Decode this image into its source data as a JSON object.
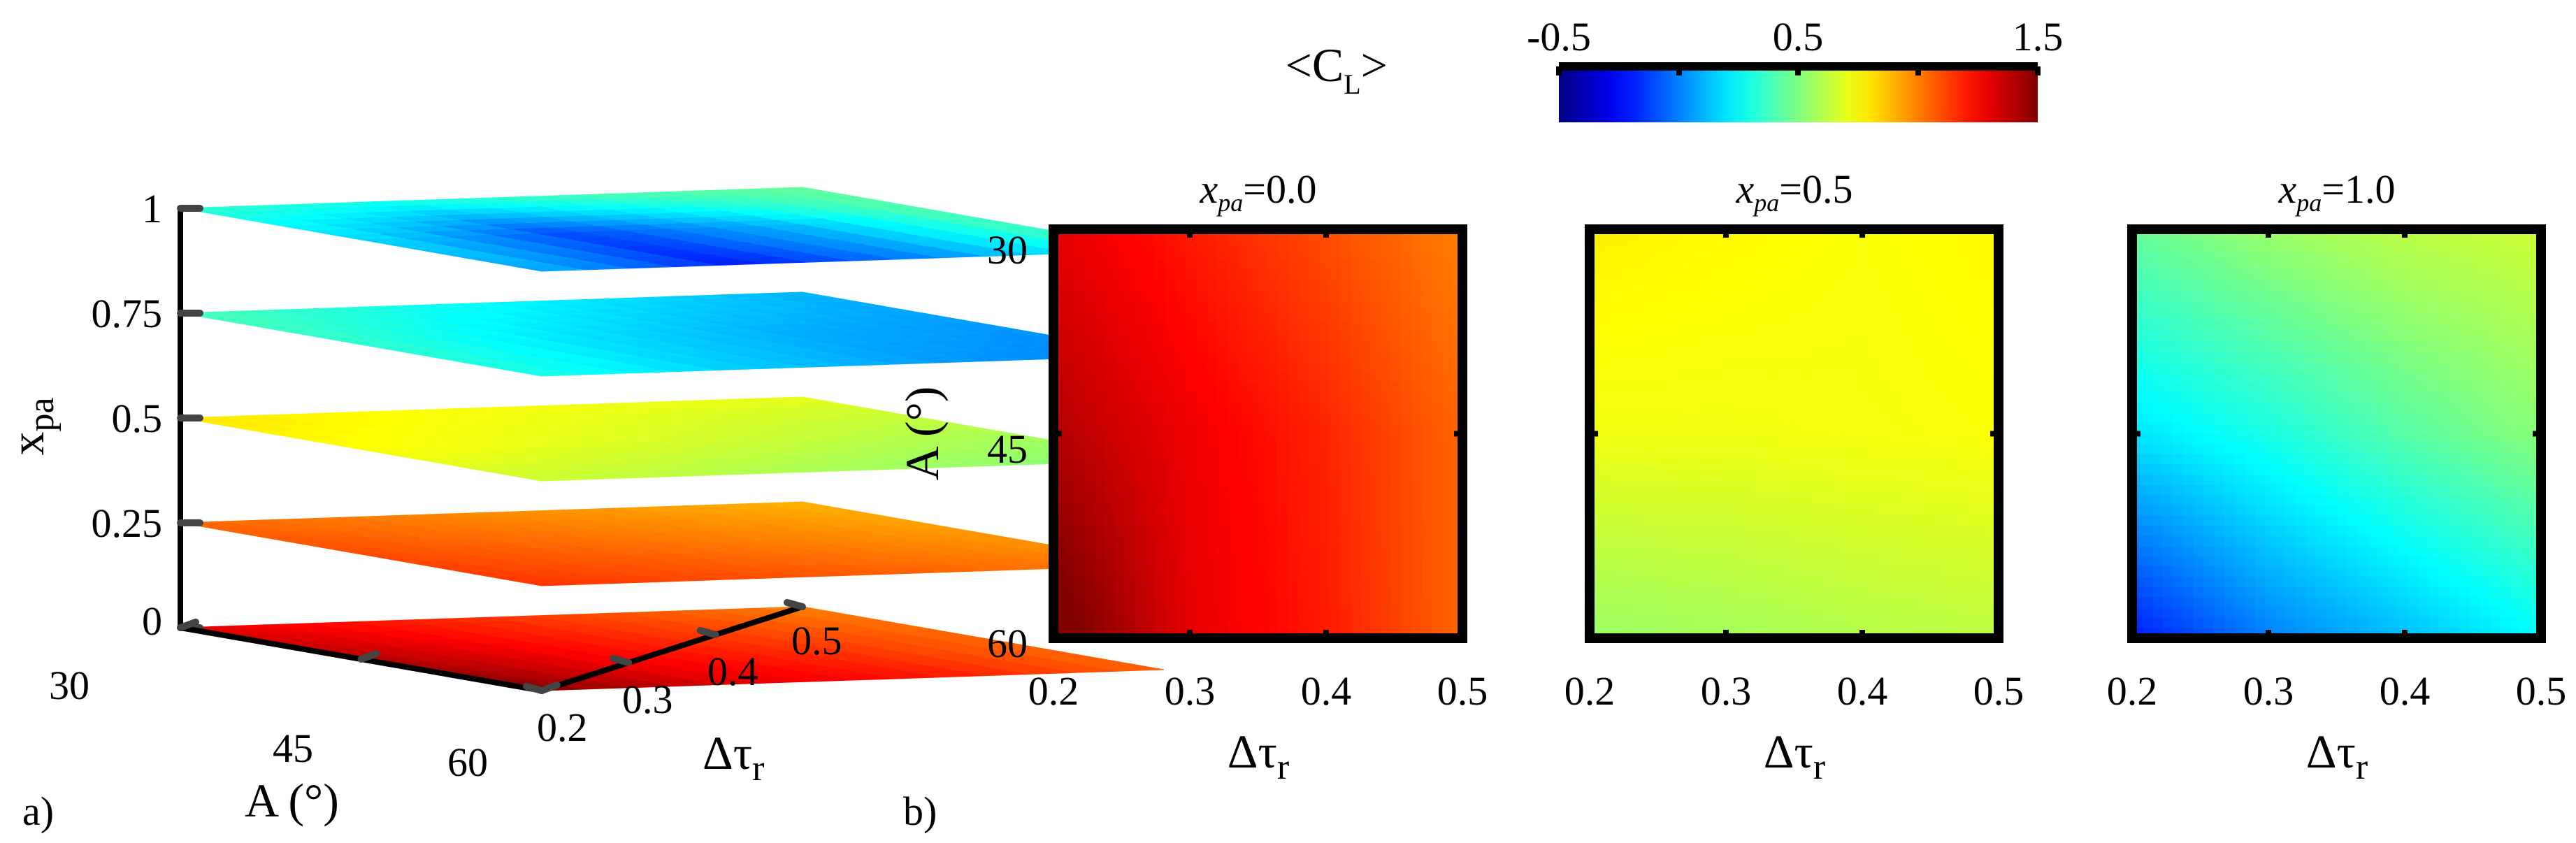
{
  "figure": {
    "panel_labels": [
      "a)",
      "b)"
    ]
  },
  "colorbar": {
    "label": "<C",
    "label_sub": "L",
    "label_close": ">",
    "min": -0.5,
    "max": 1.5,
    "ticks": [
      "-0.5",
      "0.5",
      "1.5"
    ],
    "colormap": "jet"
  },
  "chart_data": [
    {
      "type": "contour3d",
      "panel": "a)",
      "zlabel": "x",
      "zlabel_sub": "pa",
      "xlabel": "A (°)",
      "ylabel": "Δτ",
      "ylabel_sub": "r",
      "A_ticks": [
        "30",
        "45",
        "60"
      ],
      "dtau_ticks": [
        "0.2",
        "0.3",
        "0.4",
        "0.5"
      ],
      "z_ticks": [
        "0",
        "0.25",
        "0.5",
        "0.75",
        "1"
      ],
      "A": [
        30,
        45,
        60
      ],
      "dtau": [
        0.2,
        0.3,
        0.4,
        0.5
      ],
      "slices": [
        {
          "x_pa": 0.0,
          "CL": [
            [
              1.3,
              1.2,
              1.1,
              1.0
            ],
            [
              1.4,
              1.25,
              1.15,
              1.05
            ],
            [
              1.5,
              1.3,
              1.2,
              1.05
            ]
          ]
        },
        {
          "x_pa": 0.25,
          "CL": [
            [
              1.05,
              1.0,
              0.95,
              0.9
            ],
            [
              1.1,
              1.05,
              1.0,
              0.95
            ],
            [
              1.15,
              1.1,
              1.05,
              1.0
            ]
          ]
        },
        {
          "x_pa": 0.5,
          "CL": [
            [
              0.8,
              0.75,
              0.72,
              0.7
            ],
            [
              0.75,
              0.7,
              0.65,
              0.6
            ],
            [
              0.65,
              0.6,
              0.55,
              0.5
            ]
          ]
        },
        {
          "x_pa": 0.75,
          "CL": [
            [
              0.4,
              0.3,
              0.2,
              0.1
            ],
            [
              0.35,
              0.2,
              0.1,
              0.05
            ],
            [
              0.3,
              0.15,
              0.05,
              0.0
            ]
          ]
        },
        {
          "x_pa": 1.0,
          "CL": [
            [
              0.35,
              0.3,
              0.4,
              0.45
            ],
            [
              0.2,
              -0.1,
              0.1,
              0.4
            ],
            [
              0.1,
              -0.2,
              0.05,
              0.35
            ]
          ]
        }
      ]
    },
    {
      "type": "heatmap",
      "panel": "b)",
      "title": "x",
      "title_sub": "pa",
      "title_value": "=0.0",
      "xlabel": "Δτ",
      "xlabel_sub": "r",
      "ylabel": "A (°)",
      "x": [
        0.2,
        0.3,
        0.4,
        0.5
      ],
      "y": [
        30,
        45,
        60
      ],
      "x_ticks": [
        "0.2",
        "0.3",
        "0.4",
        "0.5"
      ],
      "y_ticks": [
        "30",
        "45",
        "60"
      ],
      "values": [
        [
          1.3,
          1.2,
          1.1,
          1.0
        ],
        [
          1.4,
          1.28,
          1.18,
          1.05
        ],
        [
          1.55,
          1.3,
          1.2,
          1.05
        ]
      ]
    },
    {
      "type": "heatmap",
      "title": "x",
      "title_sub": "pa",
      "title_value": "=0.5",
      "xlabel": "Δτ",
      "xlabel_sub": "r",
      "x": [
        0.2,
        0.3,
        0.4,
        0.5
      ],
      "y": [
        30,
        45,
        60
      ],
      "x_ticks": [
        "0.2",
        "0.3",
        "0.4",
        "0.5"
      ],
      "values": [
        [
          0.78,
          0.76,
          0.74,
          0.76
        ],
        [
          0.72,
          0.72,
          0.73,
          0.74
        ],
        [
          0.55,
          0.57,
          0.6,
          0.62
        ]
      ]
    },
    {
      "type": "heatmap",
      "title": "x",
      "title_sub": "pa",
      "title_value": "=1.0",
      "xlabel": "Δτ",
      "xlabel_sub": "r",
      "x": [
        0.2,
        0.3,
        0.4,
        0.5
      ],
      "y": [
        30,
        45,
        60
      ],
      "x_ticks": [
        "0.2",
        "0.3",
        "0.4",
        "0.5"
      ],
      "values": [
        [
          0.45,
          0.55,
          0.62,
          0.65
        ],
        [
          0.2,
          0.3,
          0.42,
          0.52
        ],
        [
          -0.2,
          0.0,
          0.12,
          0.25
        ]
      ]
    }
  ]
}
